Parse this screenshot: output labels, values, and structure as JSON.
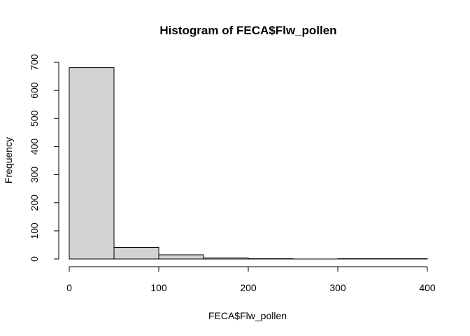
{
  "chart_data": {
    "type": "bar",
    "title": "Histogram of FECA$Flw_pollen",
    "xlabel": "FECA$Flw_pollen",
    "ylabel": "Frequency",
    "bins": [
      {
        "start": 0,
        "end": 50,
        "count": 681
      },
      {
        "start": 50,
        "end": 100,
        "count": 41
      },
      {
        "start": 100,
        "end": 150,
        "count": 15
      },
      {
        "start": 150,
        "end": 200,
        "count": 4
      },
      {
        "start": 200,
        "end": 250,
        "count": 1
      },
      {
        "start": 250,
        "end": 300,
        "count": 0
      },
      {
        "start": 300,
        "end": 350,
        "count": 1
      },
      {
        "start": 350,
        "end": 400,
        "count": 1
      }
    ],
    "xlim": [
      0,
      400
    ],
    "ylim": [
      0,
      700
    ],
    "x_ticks": [
      "0",
      "100",
      "200",
      "300",
      "400"
    ],
    "y_ticks": [
      "0",
      "100",
      "200",
      "300",
      "400",
      "500",
      "600",
      "700"
    ],
    "bar_color": "#d3d3d3",
    "grid": false,
    "legend": "none"
  }
}
